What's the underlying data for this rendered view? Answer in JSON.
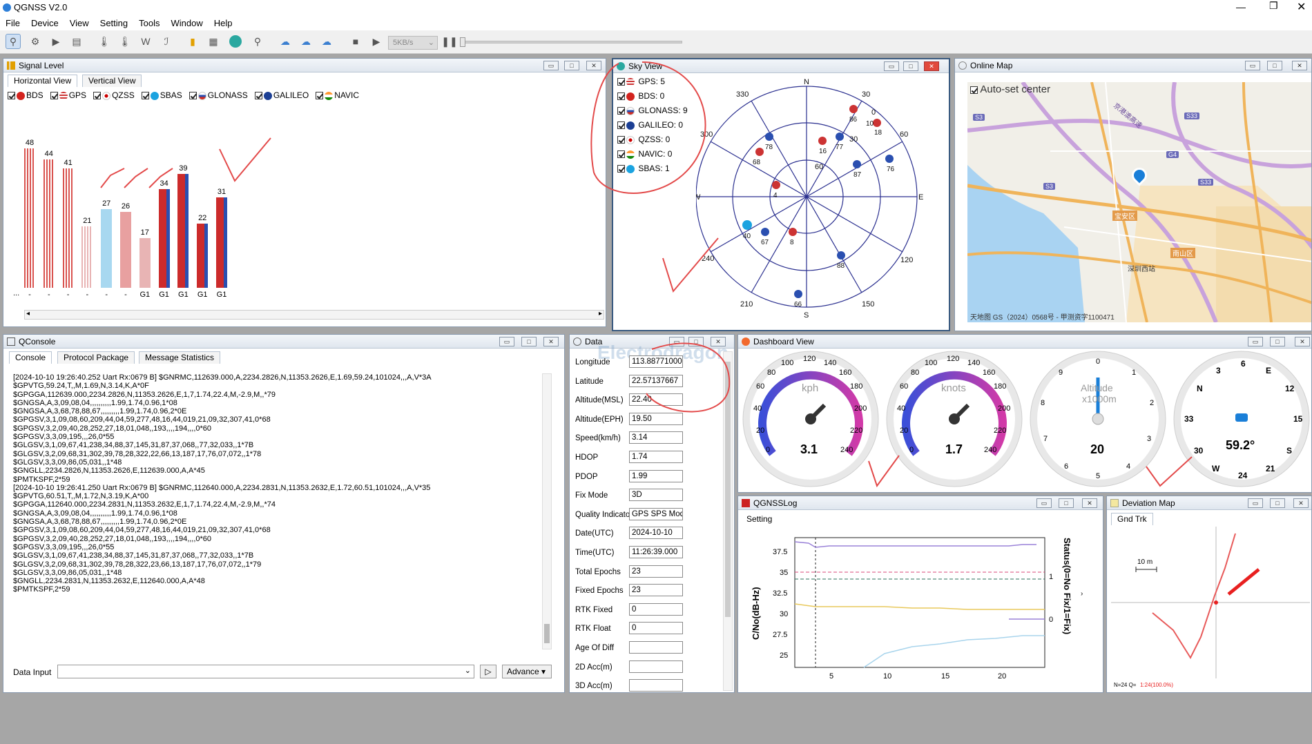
{
  "app": {
    "title": "QGNSS V2.0"
  },
  "menu": [
    "File",
    "Device",
    "View",
    "Setting",
    "Tools",
    "Window",
    "Help"
  ],
  "toolbar": {
    "rate": "5KB/s"
  },
  "signal": {
    "title": "Signal Level",
    "tabs": [
      "Horizontal View",
      "Vertical View"
    ],
    "legend": [
      "BDS",
      "GPS",
      "QZSS",
      "SBAS",
      "GLONASS",
      "GALILEO",
      "NAVIC"
    ],
    "bars": [
      {
        "value": 48,
        "label": "-",
        "color": "#d9534f",
        "striped": true
      },
      {
        "value": 44,
        "label": "-",
        "color": "#d9534f",
        "striped": true
      },
      {
        "value": 41,
        "label": "-",
        "color": "#d9534f",
        "striped": true
      },
      {
        "value": 21,
        "label": "-",
        "color": "#e8b4b4",
        "striped": true
      },
      {
        "value": 27,
        "label": "-",
        "color": "#a8d8f0",
        "striped": false
      },
      {
        "value": 26,
        "label": "-",
        "color": "#e8a0a0",
        "striped": false
      },
      {
        "value": 17,
        "label": "G1",
        "color": "#e8b4b4",
        "striped": false
      },
      {
        "value": 34,
        "label": "G1",
        "color": "#cc2b2b",
        "striped": false
      },
      {
        "value": 39,
        "label": "G1",
        "color": "#cc2b2b",
        "striped": false
      },
      {
        "value": 22,
        "label": "G1",
        "color": "#cc2b2b",
        "striped": false
      },
      {
        "value": 31,
        "label": "G1",
        "color": "#cc2b2b",
        "striped": false
      }
    ],
    "dots": "..."
  },
  "sky": {
    "title": "Sky View",
    "systems": [
      "GPS: 5",
      "BDS: 0",
      "GLONASS: 9",
      "GALILEO: 0",
      "QZSS: 0",
      "NAVIC: 0",
      "SBAS: 1"
    ],
    "dirs": {
      "n": "N",
      "s": "S",
      "e": "E",
      "w": "W"
    },
    "azimuth": [
      "30",
      "60",
      "120",
      "150",
      "210",
      "240",
      "300",
      "330"
    ],
    "elevation": [
      "60",
      "30",
      "0"
    ],
    "sats": [
      "86",
      "18",
      "78",
      "16",
      "77",
      "68",
      "87",
      "76",
      "4",
      "40",
      "67",
      "8",
      "88",
      "66",
      "10"
    ]
  },
  "map": {
    "title": "Online Map",
    "autoset": "Auto-set center",
    "labels": [
      "S3",
      "S33",
      "G4",
      "S3",
      "S33",
      "宝安区",
      "南山区",
      "深圳西站"
    ],
    "road": "京港澳高速",
    "copyright": "天地图 GS（2024）0568号 - 甲测资字1100471"
  },
  "console": {
    "title": "QConsole",
    "tabs": [
      "Console",
      "Protocol Package",
      "Message Statistics"
    ],
    "lines": [
      "[2024-10-10 19:26:40.252 Uart Rx:0679 B] $GNRMC,112639.000,A,2234.2826,N,11353.2626,E,1.69,59.24,101024,,,A,V*3A",
      "$GPVTG,59.24,T,,M,1.69,N,3.14,K,A*0F",
      "$GPGGA,112639.000,2234.2826,N,11353.2626,E,1,7,1.74,22.4,M,-2.9,M,,*79",
      "$GNGSA,A,3,09,08,04,,,,,,,,,,1.99,1.74,0.96,1*08",
      "$GNGSA,A,3,68,78,88,67,,,,,,,,,1.99,1.74,0.96,2*0E",
      "$GPGSV,3,1,09,08,60,209,44,04,59,277,48,16,44,019,21,09,32,307,41,0*68",
      "$GPGSV,3,2,09,40,28,252,27,18,01,048,,193,,,,194,,,,0*60",
      "$GPGSV,3,3,09,195,,,26,0*55",
      "$GLGSV,3,1,09,67,41,238,34,88,37,145,31,87,37,068,,77,32,033,,1*7B",
      "$GLGSV,3,2,09,68,31,302,39,78,28,322,22,66,13,187,17,76,07,072,,1*78",
      "$GLGSV,3,3,09,86,05,031,,1*48",
      "$GNGLL,2234.2826,N,11353.2626,E,112639.000,A,A*45",
      "$PMTKSPF,2*59",
      "[2024-10-10 19:26:41.250 Uart Rx:0679 B] $GNRMC,112640.000,A,2234.2831,N,11353.2632,E,1.72,60.51,101024,,,A,V*35",
      "$GPVTG,60.51,T,,M,1.72,N,3.19,K,A*00",
      "$GPGGA,112640.000,2234.2831,N,11353.2632,E,1,7,1.74,22.4,M,-2.9,M,,*74",
      "$GNGSA,A,3,09,08,04,,,,,,,,,,1.99,1.74,0.96,1*08",
      "$GNGSA,A,3,68,78,88,67,,,,,,,,,1.99,1.74,0.96,2*0E",
      "$GPGSV,3,1,09,08,60,209,44,04,59,277,48,16,44,019,21,09,32,307,41,0*68",
      "$GPGSV,3,2,09,40,28,252,27,18,01,048,,193,,,,194,,,,0*60",
      "$GPGSV,3,3,09,195,,,26,0*55",
      "$GLGSV,3,1,09,67,41,238,34,88,37,145,31,87,37,068,,77,32,033,,1*7B",
      "$GLGSV,3,2,09,68,31,302,39,78,28,322,23,66,13,187,17,76,07,072,,1*79",
      "$GLGSV,3,3,09,86,05,031,,1*48",
      "$GNGLL,2234.2831,N,11353.2632,E,112640.000,A,A*48",
      "$PMTKSPF,2*59"
    ],
    "input_label": "Data Input",
    "advance": "Advance"
  },
  "data": {
    "title": "Data",
    "watermark": "Electrodragon",
    "rows": [
      {
        "label": "Longitude",
        "value": "113.88771000"
      },
      {
        "label": "Latitude",
        "value": "22.57137667"
      },
      {
        "label": "Altitude(MSL)",
        "value": "22.40"
      },
      {
        "label": "Altitude(EPH)",
        "value": "19.50"
      },
      {
        "label": "Speed(km/h)",
        "value": "3.14"
      },
      {
        "label": "HDOP",
        "value": "1.74"
      },
      {
        "label": "PDOP",
        "value": "1.99"
      },
      {
        "label": "Fix Mode",
        "value": "3D"
      },
      {
        "label": "Quality Indicator",
        "value": "GPS SPS Mode"
      },
      {
        "label": "Date(UTC)",
        "value": "2024-10-10"
      },
      {
        "label": "Time(UTC)",
        "value": "11:26:39.000"
      },
      {
        "label": "Total Epochs",
        "value": "23"
      },
      {
        "label": "Fixed Epochs",
        "value": "23"
      },
      {
        "label": "RTK Fixed",
        "value": "0"
      },
      {
        "label": "RTK Float",
        "value": "0"
      },
      {
        "label": "Age Of Diff",
        "value": ""
      },
      {
        "label": "2D Acc(m)",
        "value": ""
      },
      {
        "label": "3D Acc(m)",
        "value": ""
      }
    ]
  },
  "dashboard": {
    "title": "Dashboard View",
    "kph": {
      "unit": "kph",
      "value": "3.1",
      "ticks": [
        "0",
        "20",
        "40",
        "60",
        "80",
        "100",
        "120",
        "140",
        "160",
        "180",
        "200",
        "220",
        "240"
      ]
    },
    "knots": {
      "unit": "knots",
      "value": "1.7",
      "ticks": [
        "0",
        "20",
        "40",
        "60",
        "80",
        "100",
        "120",
        "140",
        "160",
        "180",
        "200",
        "220",
        "240"
      ]
    },
    "alt": {
      "unit": "Altitude",
      "unit2": "x1000m",
      "value": "20",
      "ticks": [
        "0",
        "1",
        "2",
        "3",
        "4",
        "5",
        "6",
        "7",
        "8",
        "9"
      ]
    },
    "compass": {
      "value": "59.2°",
      "ticks": [
        "N",
        "3",
        "6",
        "E",
        "12",
        "15",
        "S",
        "21",
        "24",
        "W",
        "30",
        "33"
      ]
    }
  },
  "log": {
    "title": "QGNSSLog",
    "setting": "Setting",
    "ylabel": "C/No(dB-Hz)",
    "y2label": "Status(0=No Fix/1=Fix)",
    "yticks": [
      "37.5",
      "35",
      "32.5",
      "30",
      "27.5",
      "25"
    ],
    "xticks": [
      "5",
      "10",
      "15",
      "20"
    ],
    "y2ticks": [
      "1",
      "0"
    ]
  },
  "dev": {
    "title": "Deviation Map",
    "tab": "Gnd Trk",
    "scale": "10 m",
    "footer": "N=24 Q=",
    "footer2": "1:24(100.0%)"
  }
}
